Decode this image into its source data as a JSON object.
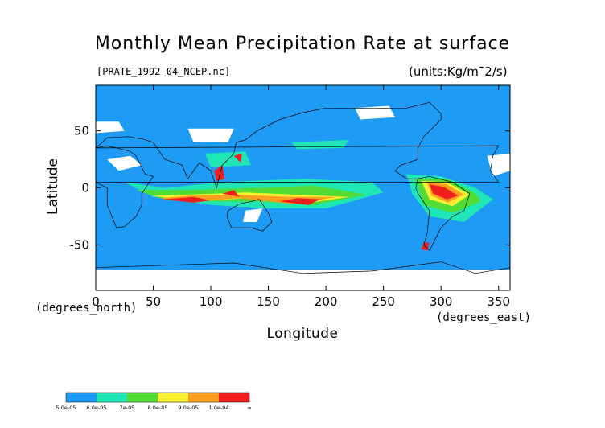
{
  "chart_data": {
    "type": "heatmap",
    "title": "Monthly Mean Precipitation Rate at surface",
    "subtitle": "[PRATE_1992-04_NCEP.nc]",
    "units": "(units:Kg/m¯2/s)",
    "xlabel": "Longitude",
    "xlabel_units": "(degrees_east)",
    "ylabel": "Latitude",
    "ylabel_units": "(degrees_north)",
    "xlim": [
      0,
      360
    ],
    "ylim": [
      -90,
      90
    ],
    "x_ticks": [
      0,
      50,
      100,
      150,
      200,
      250,
      300,
      350
    ],
    "y_ticks": [
      -50,
      0,
      50
    ],
    "colorbar": {
      "levels": [
        {
          "label": "5.0e-05",
          "color": "#1e9bf5"
        },
        {
          "label": "6.0e-05",
          "color": "#1ee6b4"
        },
        {
          "label": "7e-05",
          "color": "#50dc32"
        },
        {
          "label": "8.0e-05",
          "color": "#faf032"
        },
        {
          "label": "9.0e-05",
          "color": "#faa01e"
        },
        {
          "label": "1.0e-04",
          "color": "#f01e1e"
        }
      ],
      "end_label": "∞"
    },
    "regions": [
      {
        "band": "no-data",
        "points": [
          [
            0,
            58
          ],
          [
            20,
            58
          ],
          [
            25,
            50
          ],
          [
            0,
            48
          ]
        ]
      },
      {
        "band": "no-data",
        "points": [
          [
            80,
            52
          ],
          [
            120,
            52
          ],
          [
            115,
            40
          ],
          [
            85,
            40
          ]
        ]
      },
      {
        "band": "no-data",
        "points": [
          [
            225,
            70
          ],
          [
            255,
            72
          ],
          [
            260,
            62
          ],
          [
            230,
            60
          ]
        ]
      },
      {
        "band": "no-data",
        "points": [
          [
            340,
            28
          ],
          [
            360,
            30
          ],
          [
            360,
            15
          ],
          [
            345,
            10
          ]
        ]
      },
      {
        "band": "no-data",
        "points": [
          [
            0,
            -72
          ],
          [
            360,
            -72
          ],
          [
            360,
            -90
          ],
          [
            0,
            -90
          ]
        ]
      },
      {
        "band": "no-data",
        "points": [
          [
            10,
            25
          ],
          [
            30,
            28
          ],
          [
            40,
            20
          ],
          [
            20,
            15
          ]
        ]
      },
      {
        "band": "no-data",
        "points": [
          [
            130,
            -20
          ],
          [
            145,
            -18
          ],
          [
            140,
            -30
          ],
          [
            128,
            -30
          ]
        ]
      },
      {
        "band": "6.0e-05",
        "points": [
          [
            25,
            5
          ],
          [
            50,
            -8
          ],
          [
            100,
            -15
          ],
          [
            150,
            -18
          ],
          [
            200,
            -18
          ],
          [
            250,
            -4
          ],
          [
            240,
            5
          ],
          [
            180,
            8
          ],
          [
            110,
            5
          ],
          [
            60,
            0
          ]
        ]
      },
      {
        "band": "6.0e-05",
        "points": [
          [
            270,
            12
          ],
          [
            300,
            10
          ],
          [
            330,
            0
          ],
          [
            345,
            -10
          ],
          [
            320,
            -30
          ],
          [
            290,
            -25
          ],
          [
            275,
            -5
          ]
        ]
      },
      {
        "band": "6.0e-05",
        "points": [
          [
            170,
            40
          ],
          [
            220,
            42
          ],
          [
            215,
            35
          ],
          [
            175,
            34
          ]
        ]
      },
      {
        "band": "6.0e-05",
        "points": [
          [
            95,
            30
          ],
          [
            130,
            32
          ],
          [
            135,
            20
          ],
          [
            100,
            18
          ]
        ]
      },
      {
        "band": "7e-05",
        "points": [
          [
            35,
            -2
          ],
          [
            60,
            -10
          ],
          [
            100,
            -12
          ],
          [
            140,
            -12
          ],
          [
            190,
            -15
          ],
          [
            235,
            -6
          ],
          [
            190,
            2
          ],
          [
            140,
            0
          ],
          [
            80,
            -2
          ]
        ]
      },
      {
        "band": "7e-05",
        "points": [
          [
            278,
            8
          ],
          [
            305,
            8
          ],
          [
            330,
            -5
          ],
          [
            335,
            -12
          ],
          [
            310,
            -22
          ],
          [
            285,
            -15
          ]
        ]
      },
      {
        "band": "8.0e-05",
        "points": [
          [
            48,
            -7
          ],
          [
            90,
            -12
          ],
          [
            130,
            -9
          ],
          [
            180,
            -14
          ],
          [
            220,
            -8
          ],
          [
            175,
            -6
          ],
          [
            130,
            -4
          ],
          [
            80,
            -6
          ]
        ]
      },
      {
        "band": "8.0e-05",
        "points": [
          [
            283,
            6
          ],
          [
            305,
            5
          ],
          [
            325,
            -6
          ],
          [
            310,
            -16
          ],
          [
            290,
            -10
          ]
        ]
      },
      {
        "band": "9.0e-05",
        "points": [
          [
            55,
            -9
          ],
          [
            85,
            -12
          ],
          [
            125,
            -9
          ],
          [
            170,
            -14
          ],
          [
            210,
            -8
          ],
          [
            170,
            -8
          ],
          [
            120,
            -6
          ],
          [
            80,
            -7
          ]
        ]
      },
      {
        "band": "9.0e-05",
        "points": [
          [
            288,
            5
          ],
          [
            305,
            3
          ],
          [
            320,
            -6
          ],
          [
            306,
            -13
          ],
          [
            292,
            -7
          ]
        ]
      },
      {
        "band": "1.0e-04",
        "points": [
          [
            58,
            -10
          ],
          [
            85,
            -13
          ],
          [
            100,
            -11
          ],
          [
            85,
            -8
          ]
        ]
      },
      {
        "band": "1.0e-04",
        "points": [
          [
            110,
            -5
          ],
          [
            125,
            -8
          ],
          [
            120,
            -2
          ]
        ]
      },
      {
        "band": "1.0e-04",
        "points": [
          [
            160,
            -12
          ],
          [
            185,
            -15
          ],
          [
            195,
            -10
          ],
          [
            175,
            -9
          ]
        ]
      },
      {
        "band": "1.0e-04",
        "points": [
          [
            290,
            3
          ],
          [
            302,
            1
          ],
          [
            315,
            -7
          ],
          [
            305,
            -10
          ],
          [
            293,
            -5
          ]
        ]
      },
      {
        "band": "1.0e-04",
        "points": [
          [
            103,
            15
          ],
          [
            110,
            20
          ],
          [
            112,
            8
          ],
          [
            105,
            6
          ]
        ]
      },
      {
        "band": "1.0e-04",
        "points": [
          [
            120,
            28
          ],
          [
            127,
            30
          ],
          [
            126,
            22
          ]
        ]
      },
      {
        "band": "1.0e-04",
        "points": [
          [
            285,
            -48
          ],
          [
            290,
            -48
          ],
          [
            288,
            -55
          ],
          [
            283,
            -54
          ]
        ]
      }
    ]
  }
}
